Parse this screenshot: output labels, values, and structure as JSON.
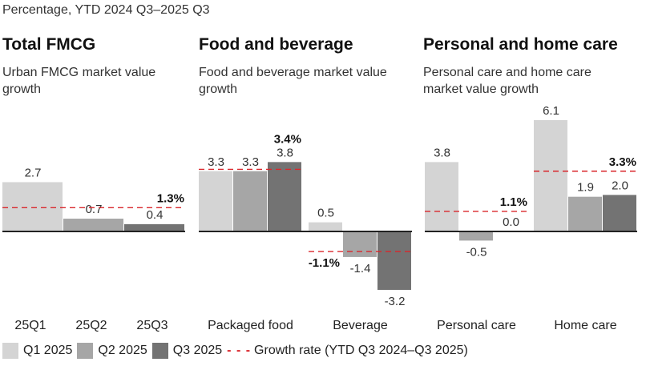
{
  "header": {
    "subtitle": "Percentage, YTD 2024 Q3–2025 Q3"
  },
  "panels": [
    {
      "title": "Total FMCG",
      "subtitle": "Urban FMCG market value growth"
    },
    {
      "title": "Food and beverage",
      "subtitle": "Food and beverage market value growth"
    },
    {
      "title": "Personal and home care",
      "subtitle": "Personal care and home care market value growth"
    }
  ],
  "legend": {
    "q1": "Q1 2025",
    "q2": "Q2 2025",
    "q3": "Q3 2025",
    "rate": "Growth rate (YTD Q3 2024–Q3 2025)",
    "rate_glyph": "- - -"
  },
  "colors": {
    "q1": "#d4d4d4",
    "q2": "#a6a6a6",
    "q3": "#737373",
    "rate": "#d9262b",
    "axis": "#222222"
  },
  "chart_data": [
    {
      "type": "bar",
      "title": "Total FMCG",
      "subtitle": "Urban FMCG market value growth",
      "categories": [
        "25Q1",
        "25Q2",
        "25Q3"
      ],
      "groups": [
        {
          "label": "",
          "values": [
            2.7,
            0.7,
            0.4
          ],
          "series_index": [
            0,
            1,
            2
          ],
          "growth_rate": 1.3,
          "growth_rate_label": "1.3%"
        }
      ],
      "value_labels": [
        "2.7",
        "0.7",
        "0.4"
      ],
      "xlabels": [
        "25Q1",
        "25Q2",
        "25Q3"
      ],
      "units": "%"
    },
    {
      "type": "bar",
      "title": "Food and beverage",
      "subtitle": "Food and beverage market value growth",
      "categories": [
        "Packaged food",
        "Beverage"
      ],
      "series": [
        {
          "name": "Q1 2025",
          "values": [
            3.3,
            0.5
          ]
        },
        {
          "name": "Q2 2025",
          "values": [
            3.3,
            -1.4
          ]
        },
        {
          "name": "Q3 2025",
          "values": [
            3.8,
            -3.2
          ]
        }
      ],
      "growth_rate": [
        3.4,
        -1.1
      ],
      "growth_rate_labels": [
        "3.4%",
        "-1.1%"
      ],
      "units": "%"
    },
    {
      "type": "bar",
      "title": "Personal and home care",
      "subtitle": "Personal care and home care market value growth",
      "categories": [
        "Personal care",
        "Home care"
      ],
      "series": [
        {
          "name": "Q1 2025",
          "values": [
            3.8,
            6.1
          ]
        },
        {
          "name": "Q2 2025",
          "values": [
            -0.5,
            1.9
          ]
        },
        {
          "name": "Q3 2025",
          "values": [
            0.0,
            2.0
          ]
        }
      ],
      "growth_rate": [
        1.1,
        3.3
      ],
      "growth_rate_labels": [
        "1.1%",
        "3.3%"
      ],
      "units": "%"
    }
  ]
}
